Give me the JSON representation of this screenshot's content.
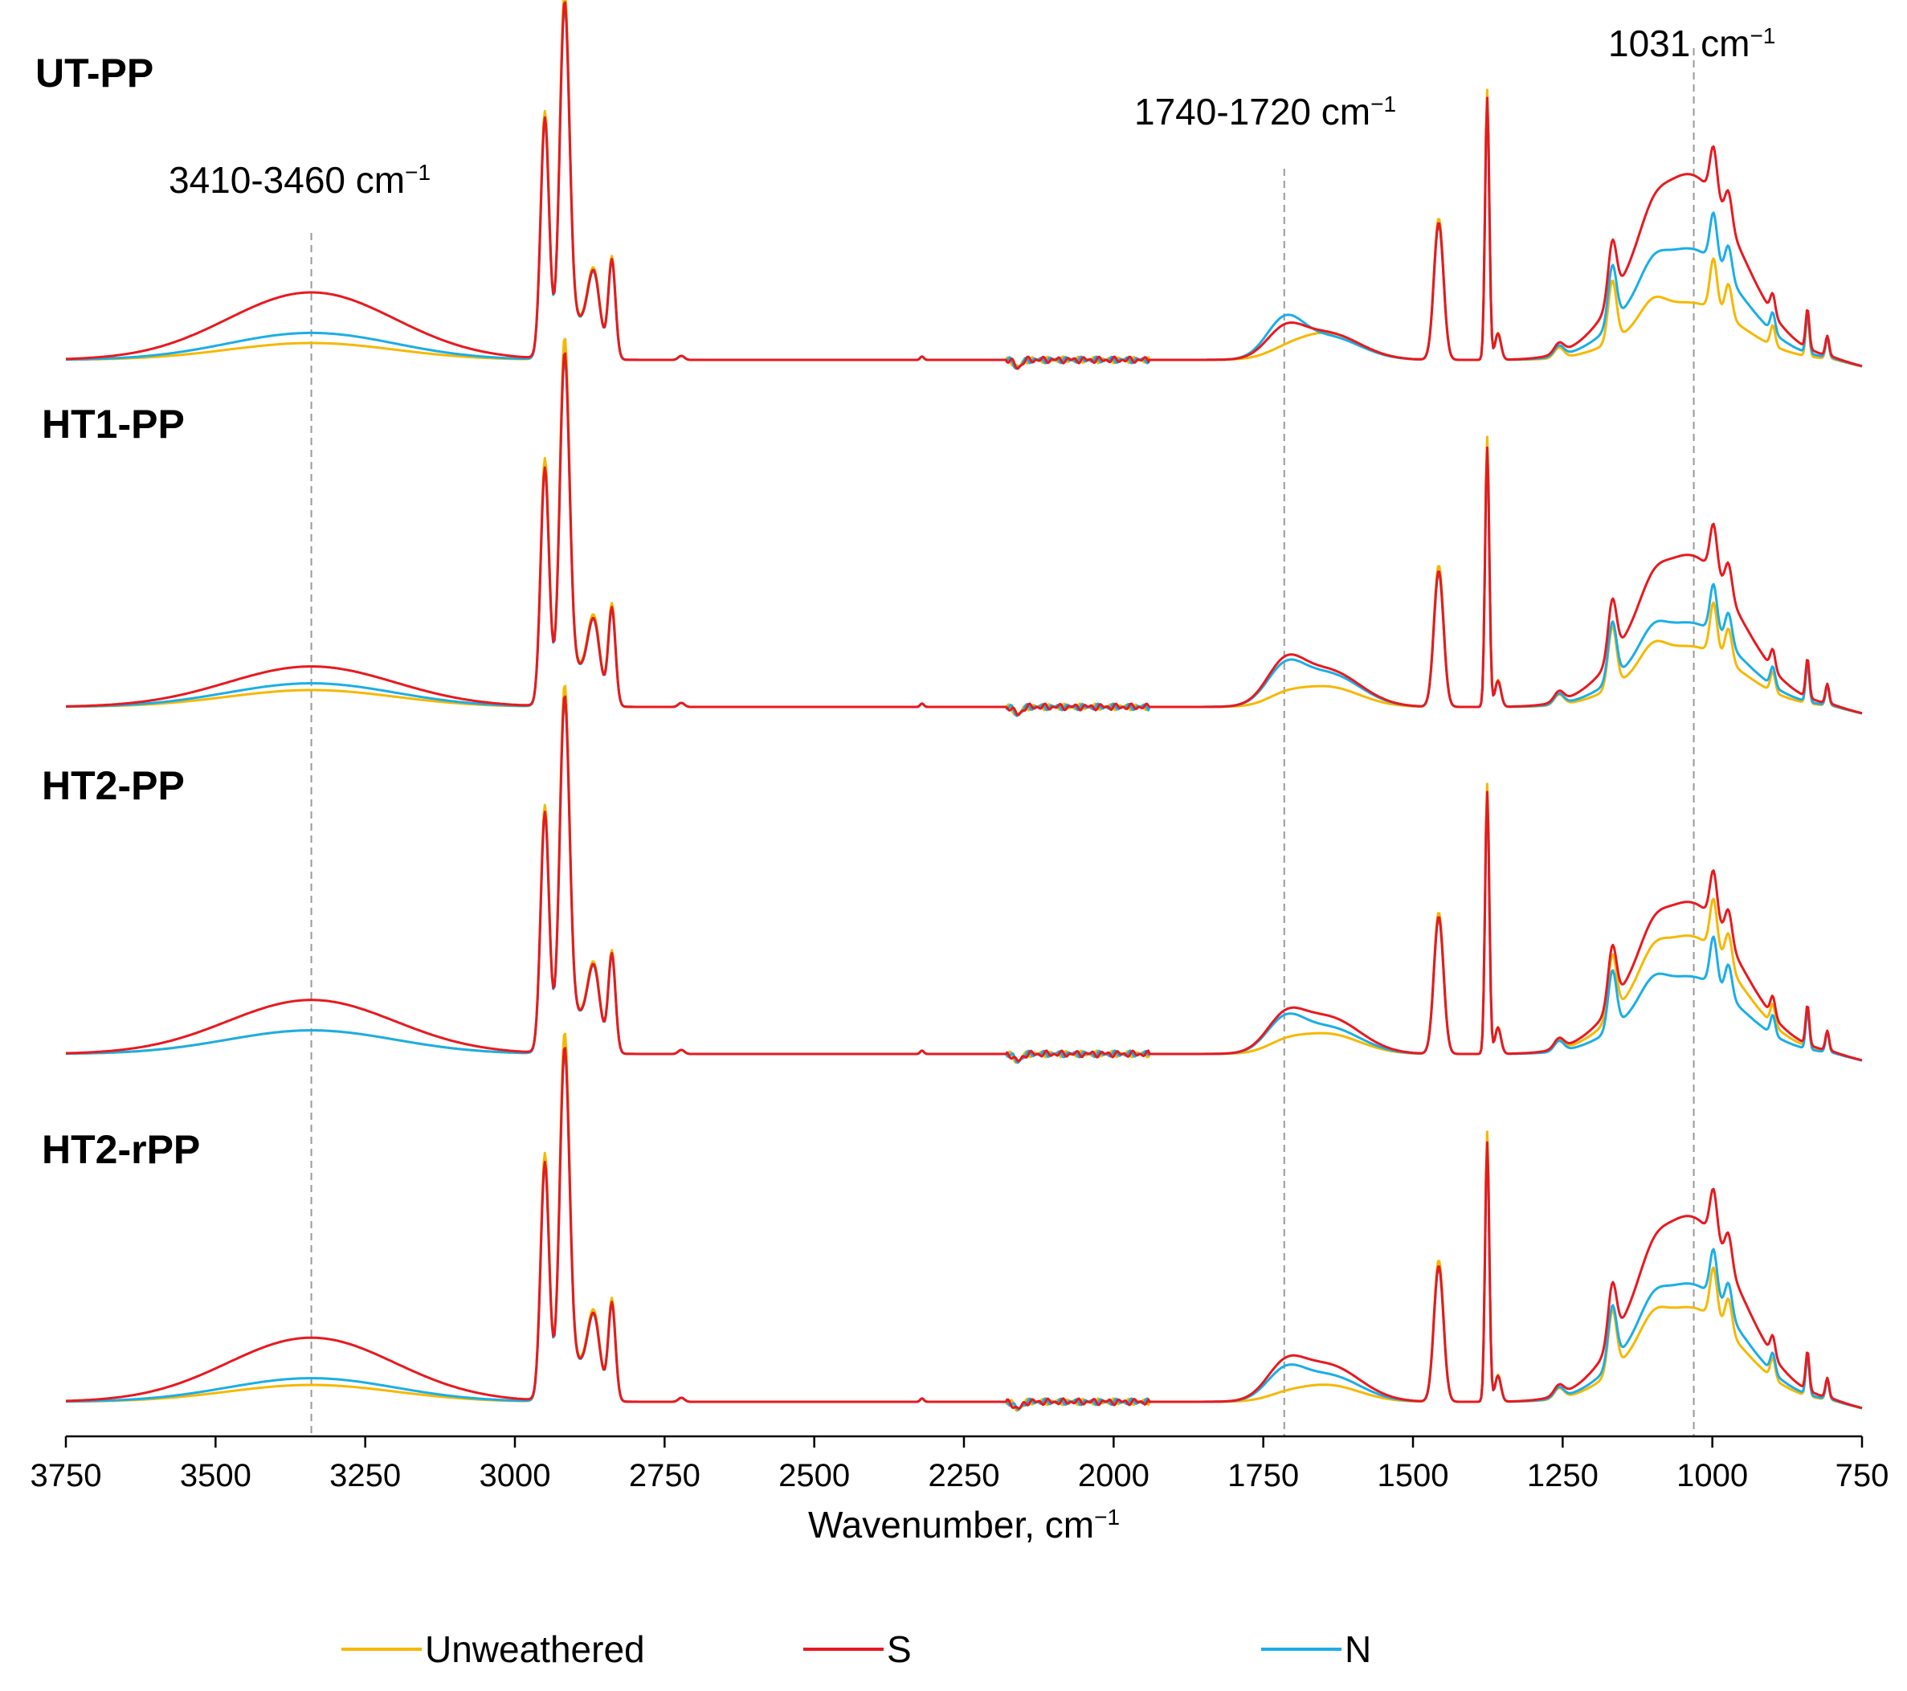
{
  "chart_data": {
    "type": "line",
    "title": "",
    "xlabel": "Wavenumber, cm",
    "xlabel_sup": "−1",
    "ylabel": "",
    "xlim": [
      3750,
      750
    ],
    "x_reversed": true,
    "xticks": [
      3750,
      3500,
      3250,
      3000,
      2750,
      2500,
      2250,
      2000,
      1750,
      1500,
      1250,
      1000,
      750
    ],
    "series_names": [
      "Unweathered",
      "S",
      "N"
    ],
    "colors": {
      "Unweathered": "#F5B800",
      "S": "#E8191F",
      "N": "#1AAEE6"
    },
    "annotations": [
      {
        "text": "3410-3460 cm",
        "sup": "−1",
        "x": 3340
      },
      {
        "text": "1740-1720 cm",
        "sup": "−1",
        "x": 1715
      },
      {
        "text": "1031 cm",
        "sup": "−1",
        "x": 1031
      }
    ],
    "panels": [
      {
        "label": "UT-PP",
        "oh_band": {
          "Unweathered": 0.05,
          "S": 0.2,
          "N": 0.08
        },
        "peak_scale": {
          "Unweathered": 1.0,
          "S": 0.97,
          "N": 0.96
        },
        "carbonyl": {
          "Unweathered": 0.01,
          "S": 0.07,
          "N": 0.1
        },
        "cooh": {
          "Unweathered": 0.08,
          "S": 0.08,
          "N": 0.07
        },
        "region_1031": {
          "Unweathered": 0.17,
          "S": 0.55,
          "N": 0.33
        }
      },
      {
        "label": "HT1-PP",
        "oh_band": {
          "Unweathered": 0.05,
          "S": 0.12,
          "N": 0.07
        },
        "peak_scale": {
          "Unweathered": 1.0,
          "S": 0.96,
          "N": 0.95
        },
        "carbonyl": {
          "Unweathered": 0.02,
          "S": 0.1,
          "N": 0.09
        },
        "cooh": {
          "Unweathered": 0.06,
          "S": 0.11,
          "N": 0.1
        },
        "region_1031": {
          "Unweathered": 0.18,
          "S": 0.45,
          "N": 0.25
        }
      },
      {
        "label": "HT2-PP",
        "oh_band": {
          "Unweathered": 0.07,
          "S": 0.16,
          "N": 0.07
        },
        "peak_scale": {
          "Unweathered": 1.0,
          "S": 0.97,
          "N": 0.96
        },
        "carbonyl": {
          "Unweathered": 0.02,
          "S": 0.08,
          "N": 0.08
        },
        "cooh": {
          "Unweathered": 0.06,
          "S": 0.11,
          "N": 0.08
        },
        "region_1031": {
          "Unweathered": 0.35,
          "S": 0.45,
          "N": 0.23
        }
      },
      {
        "label": "HT2-rPP",
        "oh_band": {
          "Unweathered": 0.05,
          "S": 0.19,
          "N": 0.07
        },
        "peak_scale": {
          "Unweathered": 1.0,
          "S": 0.96,
          "N": 0.95
        },
        "carbonyl": {
          "Unweathered": 0.01,
          "S": 0.08,
          "N": 0.07
        },
        "cooh": {
          "Unweathered": 0.05,
          "S": 0.11,
          "N": 0.08
        },
        "region_1031": {
          "Unweathered": 0.28,
          "S": 0.55,
          "N": 0.35
        }
      }
    ],
    "legend": {
      "position": "bottom",
      "items": [
        "Unweathered",
        "S",
        "N"
      ]
    }
  }
}
